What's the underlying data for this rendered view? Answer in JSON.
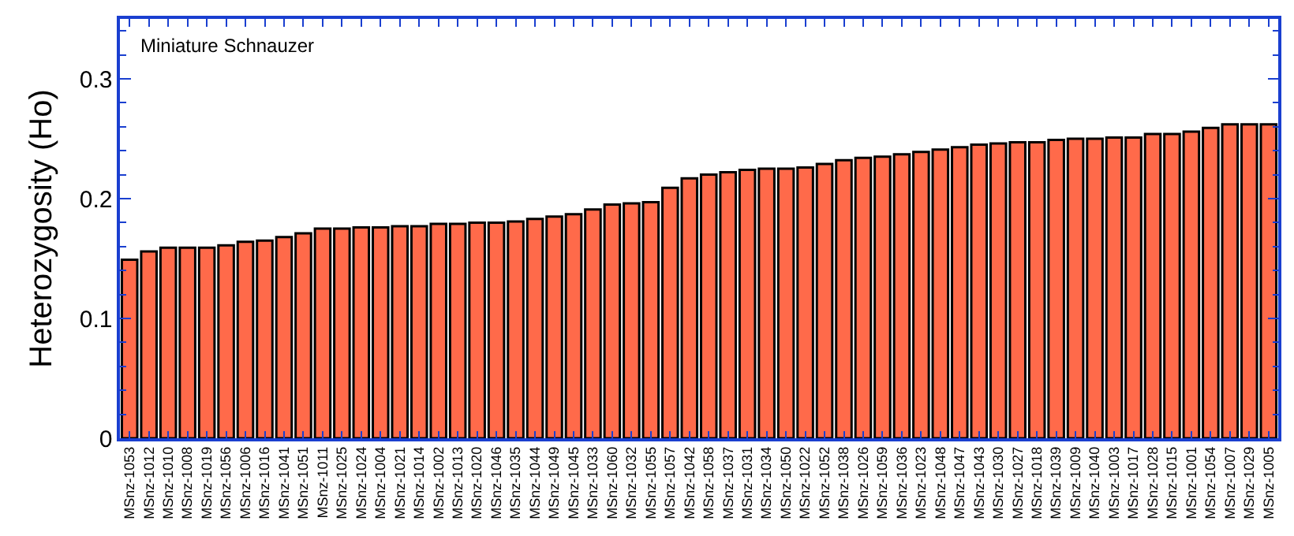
{
  "chart_data": {
    "type": "bar",
    "ylabel": "Heterozygosity (Ho)",
    "annotations": [
      "Miniature Schnauzer"
    ],
    "categories": [
      "MSnz-1053",
      "MSnz-1012",
      "MSnz-1010",
      "MSnz-1008",
      "MSnz-1019",
      "MSnz-1056",
      "MSnz-1006",
      "MSnz-1016",
      "MSnz-1041",
      "MSnz-1051",
      "MSnz-1011",
      "MSnz-1025",
      "MSnz-1024",
      "MSnz-1004",
      "MSnz-1021",
      "MSnz-1014",
      "MSnz-1002",
      "MSnz-1013",
      "MSnz-1020",
      "MSnz-1046",
      "MSnz-1035",
      "MSnz-1044",
      "MSnz-1049",
      "MSnz-1045",
      "MSnz-1033",
      "MSnz-1060",
      "MSnz-1032",
      "MSnz-1055",
      "MSnz-1057",
      "MSnz-1042",
      "MSnz-1058",
      "MSnz-1037",
      "MSnz-1031",
      "MSnz-1034",
      "MSnz-1050",
      "MSnz-1022",
      "MSnz-1052",
      "MSnz-1038",
      "MSnz-1026",
      "MSnz-1059",
      "MSnz-1036",
      "MSnz-1023",
      "MSnz-1048",
      "MSnz-1047",
      "MSnz-1043",
      "MSnz-1030",
      "MSnz-1027",
      "MSnz-1018",
      "MSnz-1039",
      "MSnz-1009",
      "MSnz-1040",
      "MSnz-1003",
      "MSnz-1017",
      "MSnz-1028",
      "MSnz-1015",
      "MSnz-1001",
      "MSnz-1054",
      "MSnz-1007",
      "MSnz-1029",
      "MSnz-1005"
    ],
    "values": [
      0.149,
      0.156,
      0.159,
      0.159,
      0.159,
      0.161,
      0.164,
      0.165,
      0.168,
      0.171,
      0.175,
      0.175,
      0.176,
      0.176,
      0.177,
      0.177,
      0.179,
      0.179,
      0.18,
      0.18,
      0.181,
      0.183,
      0.185,
      0.187,
      0.191,
      0.195,
      0.196,
      0.197,
      0.209,
      0.217,
      0.22,
      0.222,
      0.224,
      0.225,
      0.225,
      0.226,
      0.229,
      0.232,
      0.234,
      0.235,
      0.237,
      0.239,
      0.241,
      0.243,
      0.245,
      0.246,
      0.247,
      0.247,
      0.249,
      0.25,
      0.25,
      0.251,
      0.251,
      0.254,
      0.254,
      0.256,
      0.259,
      0.262,
      0.262,
      0.262
    ],
    "color": "#ff6a4a",
    "ylim": [
      0,
      0.35
    ],
    "yticks": [
      0,
      0.1,
      0.2,
      0.3
    ],
    "grid": false
  }
}
